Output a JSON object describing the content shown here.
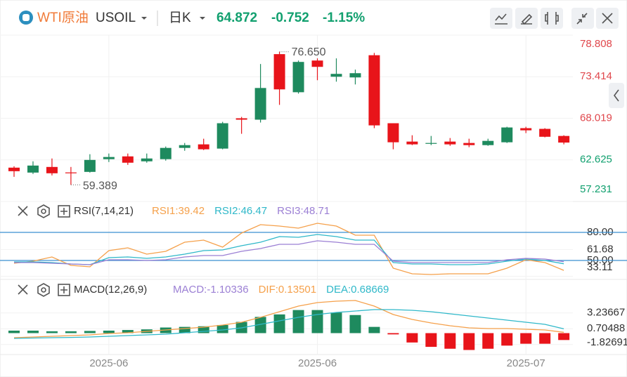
{
  "header": {
    "symbol_cn": "WTI原油",
    "symbol": "USOIL",
    "period": "日K",
    "price": "64.872",
    "change": "-0.752",
    "change_pct": "-1.15%"
  },
  "chart_data": [
    {
      "type": "candlestick",
      "categories": [
        null,
        null,
        null,
        null,
        null,
        "2025-06",
        null,
        null,
        null,
        null,
        null,
        null,
        null,
        null,
        null,
        null,
        "2025-06",
        null,
        null,
        null,
        null,
        null,
        null,
        null,
        null,
        null,
        null,
        "2025-07",
        null,
        null
      ],
      "open": [
        61.62,
        60.98,
        61.71,
        61.0,
        61.07,
        62.72,
        63.08,
        62.44,
        62.72,
        64.18,
        64.64,
        64.09,
        68.02,
        67.84,
        76.34,
        71.4,
        75.51,
        73.41,
        73.32,
        76.2,
        67.38,
        65.0,
        64.73,
        65.0,
        64.82,
        64.54,
        64.91,
        66.74,
        66.65,
        65.73
      ],
      "high": [
        61.8,
        62.44,
        62.81,
        61.71,
        63.36,
        63.45,
        63.45,
        63.45,
        64.36,
        64.82,
        65.37,
        67.56,
        68.2,
        75.06,
        76.65,
        75.51,
        75.79,
        75.79,
        74.33,
        76.5,
        67.38,
        65.82,
        65.73,
        65.46,
        65.37,
        65.37,
        66.92,
        66.92,
        66.74,
        65.82
      ],
      "low": [
        60.43,
        60.8,
        60.61,
        59.389,
        60.98,
        62.35,
        61.98,
        62.26,
        62.53,
        63.81,
        63.9,
        64.0,
        66.01,
        67.47,
        69.76,
        71.22,
        72.96,
        72.77,
        72.41,
        66.74,
        64.0,
        64.54,
        64.54,
        64.45,
        64.27,
        64.45,
        64.82,
        66.1,
        65.55,
        64.64
      ],
      "close": [
        61.16,
        61.89,
        60.89,
        60.89,
        62.62,
        63.0,
        62.26,
        62.81,
        64.18,
        64.54,
        64.0,
        67.38,
        67.84,
        71.95,
        71.77,
        75.33,
        74.69,
        73.78,
        73.87,
        67.1,
        64.91,
        64.64,
        64.82,
        64.64,
        64.54,
        65.09,
        66.83,
        66.46,
        65.624,
        64.872
      ],
      "up_color": "#1e8a5e",
      "down_color": "#e8141a",
      "annotations": [
        "76.650",
        "59.389"
      ],
      "ylim": [
        57.231,
        78.808
      ],
      "yticks": [
        78.808,
        73.414,
        68.019,
        62.625,
        57.231
      ]
    },
    {
      "type": "line",
      "title": "RSI(7,14,21)",
      "series": [
        {
          "name": "RSI1:39.42",
          "color": "#f5a04a",
          "values": [
            47.0,
            49.25,
            53.75,
            44.75,
            43.25,
            60.5,
            63.5,
            56.75,
            59.75,
            69.5,
            71.75,
            64.25,
            79.25,
            88.25,
            86.75,
            84.5,
            89.75,
            86.75,
            77,
            77,
            41.75,
            35.75,
            35,
            35.75,
            35.75,
            35.75,
            41.75,
            50.75,
            47.75,
            39.42
          ]
        },
        {
          "name": "RSI2:46.47",
          "color": "#2fb8c9",
          "values": [
            48.5,
            48.5,
            47.75,
            46.25,
            45.5,
            53,
            53.75,
            52.25,
            53.75,
            56.75,
            60.5,
            61.25,
            65.75,
            69.5,
            75.5,
            74.75,
            77.75,
            75.5,
            71.75,
            71.75,
            47.75,
            46.25,
            46.25,
            45.5,
            45.5,
            46.25,
            49.25,
            51.5,
            50,
            46.47
          ]
        },
        {
          "name": "RSI3:48.71",
          "color": "#9b7fd4",
          "values": [
            47.75,
            47.75,
            47,
            46.25,
            45.5,
            50.75,
            50.75,
            50,
            50.75,
            53.75,
            55.25,
            55.25,
            59.75,
            62.75,
            67.25,
            67.25,
            71,
            69.5,
            67.25,
            67.25,
            49.25,
            47.75,
            47.75,
            47.75,
            47.75,
            47.75,
            50.75,
            52.25,
            51.5,
            48.71
          ]
        }
      ],
      "hlines": [
        80,
        50
      ],
      "hline_color": "#3a8fd0",
      "ylim": [
        29.75,
        92
      ],
      "yticks": [
        {
          "value": 80,
          "label": "80.00"
        },
        61.68,
        {
          "value": 50,
          "label": "50.00"
        },
        33.11
      ]
    },
    {
      "type": "macd",
      "title": "MACD(12,26,9)",
      "bars": {
        "name": "MACD:-1.10336",
        "color": "#9b7fd4",
        "up_color": "#1e8a5e",
        "down_color": "#e8141a",
        "values": [
          0.4,
          0.4,
          0.3,
          0.3,
          0.35,
          0.4,
          0.5,
          0.6,
          0.9,
          1.0,
          1.1,
          1.3,
          1.8,
          2.6,
          3.0,
          3.7,
          3.7,
          3.3,
          2.9,
          1.0,
          -0.2,
          -1.5,
          -2.2,
          -2.5,
          -2.7,
          -2.5,
          -2.0,
          -1.7,
          -1.7,
          -1.10336
        ]
      },
      "series": [
        {
          "name": "DIF:0.13501",
          "color": "#f5a04a",
          "values": [
            -0.73,
            -0.62,
            -0.51,
            -0.39,
            -0.28,
            -0.06,
            0.06,
            0.28,
            0.51,
            0.73,
            0.96,
            1.29,
            1.74,
            2.53,
            3.43,
            4.33,
            4.89,
            5.12,
            5.23,
            4.33,
            2.98,
            2.19,
            1.63,
            1.18,
            0.84,
            0.73,
            0.73,
            0.62,
            0.51,
            0.13501
          ]
        },
        {
          "name": "DEA:0.68669",
          "color": "#2fb8c9",
          "values": [
            -0.84,
            -0.79,
            -0.73,
            -0.68,
            -0.62,
            -0.51,
            -0.39,
            -0.28,
            -0.17,
            0.06,
            0.28,
            0.51,
            0.84,
            1.41,
            1.97,
            2.53,
            2.98,
            3.32,
            3.54,
            3.77,
            3.77,
            3.66,
            3.43,
            3.09,
            2.76,
            2.42,
            2.08,
            1.74,
            1.41,
            0.68669
          ]
        }
      ],
      "ylim": [
        -3.43,
        5.57
      ],
      "yticks": [
        3.23667,
        0.70488,
        -1.82691
      ]
    }
  ]
}
